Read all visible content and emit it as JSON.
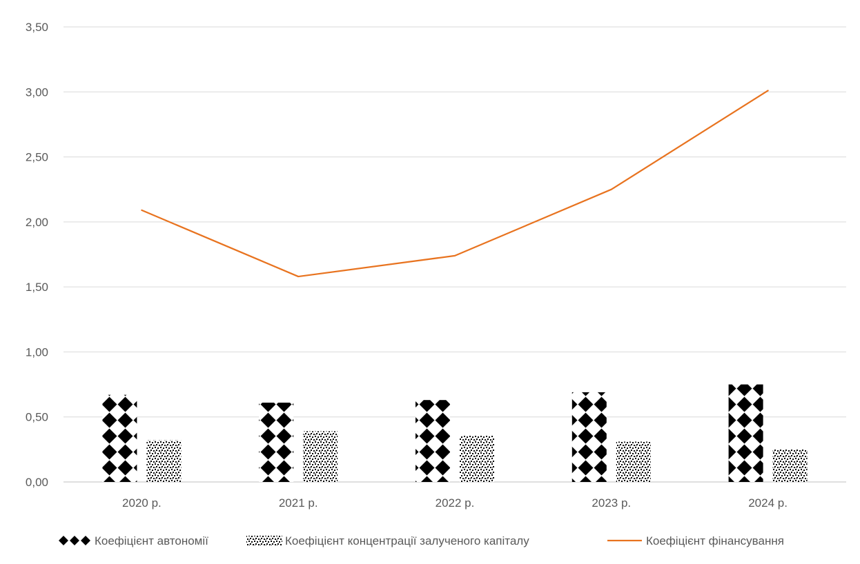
{
  "chart_data": {
    "type": "bar",
    "categories": [
      "2020 р.",
      "2021 р.",
      "2022 р.",
      "2023 р.",
      "2024 р."
    ],
    "series": [
      {
        "name": "Коефіцієнт автономії",
        "type": "bar",
        "pattern": "diamond-checker",
        "color": "#000000",
        "values": [
          0.67,
          0.61,
          0.63,
          0.69,
          0.75
        ]
      },
      {
        "name": "Коефіцієнт концентрації залученого капіталу",
        "type": "bar",
        "pattern": "dotted-speckle",
        "color": "#000000",
        "values": [
          0.32,
          0.39,
          0.36,
          0.31,
          0.25
        ]
      },
      {
        "name": "Коефіцієнт фінансування",
        "type": "line",
        "color": "#E8731F",
        "values": [
          2.09,
          1.58,
          1.74,
          2.25,
          3.01
        ]
      }
    ],
    "y_ticks": [
      "0,00",
      "0,50",
      "1,00",
      "1,50",
      "2,00",
      "2,50",
      "3,00",
      "3,50"
    ],
    "ylim": [
      0,
      3.5
    ],
    "grid": true,
    "gridline_color": "#D9D9D9",
    "legend_position": "bottom",
    "title": "",
    "xlabel": "",
    "ylabel": ""
  }
}
